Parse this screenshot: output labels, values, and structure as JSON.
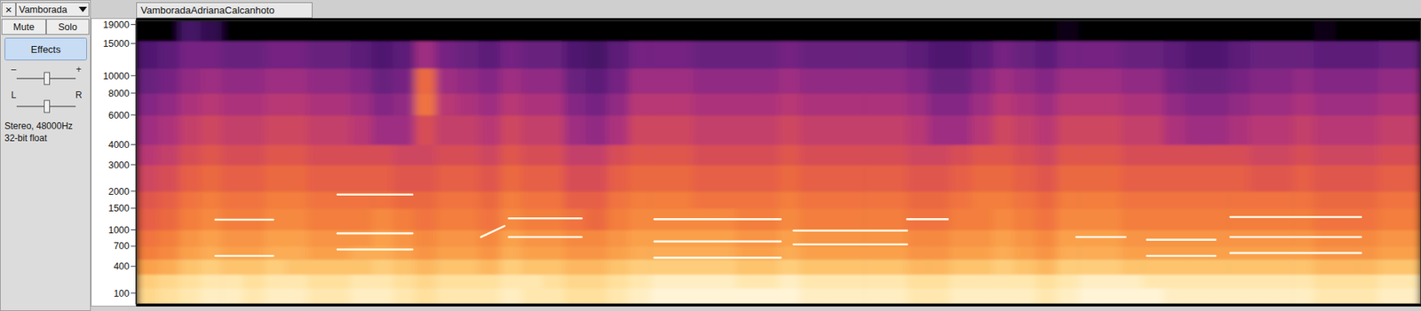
{
  "track": {
    "close": "×",
    "name": "Vamborada",
    "buttons": [
      "Mute",
      "Solo"
    ],
    "effects": "Effects",
    "gain": [
      "–",
      "+"
    ],
    "pan": [
      "L",
      "R"
    ],
    "info": [
      "Stereo, 48000Hz",
      "32-bit float"
    ]
  },
  "chart_data": {
    "type": "spectrogram",
    "title": "VamboradaAdrianaCalcanhoto",
    "xlim": [
      0,
      60
    ],
    "ylim": [
      0,
      20000
    ],
    "zlim": [
      -80,
      0
    ],
    "yticks": [
      100,
      400,
      700,
      1000,
      1500,
      2000,
      3000,
      4000,
      6000,
      8000,
      10000,
      15000,
      19000
    ],
    "tick_labels": "y",
    "bands": [
      0,
      150,
      300,
      500,
      700,
      1000,
      1500,
      2000,
      3000,
      4000,
      6000,
      8000,
      11000,
      15500,
      20000
    ],
    "cells": [
      [
        -12,
        -10,
        -8,
        -6,
        -6,
        -8,
        -6,
        -6,
        -8,
        -8,
        -6,
        -6,
        -8,
        -10,
        -8,
        -8,
        -8,
        -6,
        -8,
        -8,
        -10,
        -10,
        -8,
        -6,
        -4,
        -4,
        -4,
        -4,
        -4,
        -4,
        -4,
        -6,
        -6,
        -6,
        -6,
        -6,
        -8,
        -8,
        -6,
        -6,
        -6,
        -6,
        -8,
        -6,
        -4,
        -4,
        -4,
        -4,
        -6,
        -6,
        -6,
        -6,
        -6,
        -6,
        -6,
        -8,
        -8,
        -8,
        -6,
        -6
      ],
      [
        -14,
        -12,
        -10,
        -8,
        -8,
        -10,
        -8,
        -8,
        -10,
        -10,
        -8,
        -8,
        -10,
        -12,
        -10,
        -10,
        -10,
        -8,
        -8,
        -10,
        -12,
        -12,
        -10,
        -8,
        -6,
        -6,
        -6,
        -6,
        -8,
        -8,
        -6,
        -8,
        -8,
        -8,
        -8,
        -8,
        -10,
        -10,
        -8,
        -8,
        -8,
        -8,
        -10,
        -8,
        -6,
        -6,
        -6,
        -8,
        -8,
        -8,
        -8,
        -8,
        -8,
        -8,
        -8,
        -10,
        -10,
        -10,
        -8,
        -8
      ],
      [
        -22,
        -20,
        -16,
        -14,
        -16,
        -16,
        -14,
        -16,
        -16,
        -16,
        -16,
        -14,
        -16,
        -18,
        -16,
        -16,
        -18,
        -14,
        -16,
        -16,
        -18,
        -18,
        -16,
        -14,
        -14,
        -14,
        -14,
        -14,
        -16,
        -16,
        -14,
        -16,
        -16,
        -16,
        -16,
        -16,
        -18,
        -18,
        -16,
        -16,
        -14,
        -16,
        -18,
        -14,
        -14,
        -14,
        -16,
        -16,
        -16,
        -16,
        -16,
        -16,
        -16,
        -16,
        -16,
        -18,
        -18,
        -18,
        -16,
        -16
      ],
      [
        -28,
        -26,
        -22,
        -20,
        -22,
        -22,
        -20,
        -20,
        -22,
        -22,
        -20,
        -20,
        -22,
        -24,
        -22,
        -22,
        -24,
        -20,
        -22,
        -22,
        -24,
        -24,
        -22,
        -20,
        -20,
        -20,
        -20,
        -20,
        -22,
        -22,
        -20,
        -22,
        -22,
        -22,
        -22,
        -22,
        -24,
        -24,
        -22,
        -22,
        -20,
        -22,
        -24,
        -20,
        -20,
        -20,
        -22,
        -22,
        -22,
        -22,
        -22,
        -22,
        -22,
        -22,
        -22,
        -24,
        -24,
        -24,
        -22,
        -22
      ],
      [
        -30,
        -28,
        -24,
        -22,
        -24,
        -24,
        -22,
        -22,
        -24,
        -24,
        -24,
        -22,
        -24,
        -26,
        -24,
        -24,
        -26,
        -22,
        -24,
        -24,
        -26,
        -26,
        -24,
        -22,
        -22,
        -22,
        -22,
        -22,
        -24,
        -24,
        -22,
        -24,
        -24,
        -24,
        -24,
        -24,
        -26,
        -26,
        -24,
        -24,
        -22,
        -24,
        -26,
        -22,
        -22,
        -22,
        -24,
        -24,
        -24,
        -24,
        -24,
        -24,
        -24,
        -24,
        -24,
        -26,
        -26,
        -26,
        -24,
        -24
      ],
      [
        -34,
        -32,
        -28,
        -26,
        -28,
        -28,
        -26,
        -26,
        -28,
        -28,
        -28,
        -26,
        -28,
        -30,
        -28,
        -28,
        -30,
        -26,
        -28,
        -28,
        -30,
        -32,
        -28,
        -26,
        -26,
        -26,
        -26,
        -26,
        -28,
        -28,
        -26,
        -28,
        -28,
        -28,
        -28,
        -28,
        -30,
        -30,
        -28,
        -28,
        -26,
        -28,
        -30,
        -26,
        -26,
        -26,
        -28,
        -28,
        -28,
        -28,
        -28,
        -28,
        -28,
        -28,
        -28,
        -30,
        -30,
        -30,
        -28,
        -28
      ],
      [
        -36,
        -34,
        -30,
        -28,
        -30,
        -30,
        -28,
        -28,
        -30,
        -30,
        -30,
        -30,
        -32,
        -32,
        -30,
        -30,
        -32,
        -28,
        -30,
        -30,
        -34,
        -34,
        -30,
        -28,
        -28,
        -28,
        -30,
        -30,
        -30,
        -30,
        -28,
        -30,
        -30,
        -30,
        -30,
        -30,
        -32,
        -32,
        -30,
        -28,
        -28,
        -30,
        -32,
        -28,
        -28,
        -28,
        -30,
        -30,
        -30,
        -30,
        -30,
        -30,
        -30,
        -30,
        -30,
        -32,
        -32,
        -32,
        -30,
        -30
      ],
      [
        -40,
        -38,
        -34,
        -32,
        -34,
        -34,
        -32,
        -32,
        -34,
        -34,
        -34,
        -34,
        -36,
        -36,
        -34,
        -34,
        -36,
        -32,
        -34,
        -34,
        -38,
        -38,
        -34,
        -32,
        -32,
        -32,
        -34,
        -34,
        -34,
        -34,
        -32,
        -34,
        -34,
        -34,
        -34,
        -34,
        -36,
        -36,
        -34,
        -32,
        -32,
        -34,
        -36,
        -32,
        -32,
        -32,
        -34,
        -34,
        -34,
        -34,
        -34,
        -34,
        -36,
        -36,
        -34,
        -36,
        -36,
        -36,
        -34,
        -34
      ],
      [
        -44,
        -42,
        -38,
        -36,
        -38,
        -38,
        -36,
        -36,
        -38,
        -38,
        -38,
        -38,
        -40,
        -40,
        -38,
        -38,
        -40,
        -36,
        -38,
        -38,
        -42,
        -42,
        -38,
        -36,
        -36,
        -36,
        -38,
        -38,
        -38,
        -38,
        -36,
        -38,
        -38,
        -38,
        -38,
        -38,
        -40,
        -40,
        -38,
        -36,
        -36,
        -38,
        -40,
        -36,
        -36,
        -36,
        -38,
        -38,
        -38,
        -38,
        -38,
        -38,
        -40,
        -40,
        -38,
        -40,
        -40,
        -40,
        -38,
        -38
      ],
      [
        -48,
        -46,
        -42,
        -40,
        -42,
        -42,
        -40,
        -40,
        -42,
        -42,
        -44,
        -48,
        -48,
        -38,
        -42,
        -42,
        -44,
        -40,
        -42,
        -42,
        -48,
        -50,
        -46,
        -40,
        -40,
        -40,
        -42,
        -42,
        -42,
        -42,
        -40,
        -42,
        -42,
        -42,
        -42,
        -42,
        -44,
        -48,
        -48,
        -44,
        -40,
        -42,
        -44,
        -40,
        -40,
        -40,
        -42,
        -42,
        -46,
        -48,
        -48,
        -46,
        -44,
        -44,
        -42,
        -44,
        -44,
        -44,
        -42,
        -42
      ],
      [
        -52,
        -50,
        -46,
        -44,
        -46,
        -46,
        -44,
        -44,
        -46,
        -46,
        -48,
        -52,
        -50,
        -30,
        -44,
        -46,
        -48,
        -44,
        -46,
        -46,
        -52,
        -54,
        -50,
        -44,
        -44,
        -44,
        -46,
        -46,
        -46,
        -46,
        -44,
        -46,
        -46,
        -46,
        -46,
        -46,
        -48,
        -52,
        -52,
        -48,
        -44,
        -46,
        -48,
        -44,
        -44,
        -44,
        -46,
        -46,
        -50,
        -52,
        -52,
        -50,
        -48,
        -48,
        -46,
        -48,
        -48,
        -48,
        -46,
        -46
      ],
      [
        -56,
        -54,
        -50,
        -48,
        -50,
        -50,
        -48,
        -48,
        -50,
        -50,
        -52,
        -56,
        -54,
        -32,
        -48,
        -50,
        -52,
        -48,
        -50,
        -50,
        -56,
        -58,
        -54,
        -48,
        -48,
        -48,
        -50,
        -50,
        -50,
        -50,
        -48,
        -50,
        -50,
        -50,
        -50,
        -50,
        -52,
        -56,
        -56,
        -52,
        -48,
        -50,
        -52,
        -48,
        -48,
        -48,
        -50,
        -50,
        -54,
        -56,
        -56,
        -54,
        -52,
        -52,
        -50,
        -52,
        -52,
        -52,
        -50,
        -50
      ],
      [
        -60,
        -58,
        -54,
        -54,
        -56,
        -56,
        -54,
        -54,
        -56,
        -56,
        -58,
        -60,
        -58,
        -48,
        -54,
        -56,
        -58,
        -54,
        -56,
        -56,
        -60,
        -62,
        -58,
        -54,
        -54,
        -54,
        -56,
        -56,
        -56,
        -56,
        -54,
        -56,
        -56,
        -56,
        -56,
        -56,
        -58,
        -60,
        -60,
        -58,
        -54,
        -56,
        -58,
        -54,
        -54,
        -54,
        -56,
        -56,
        -58,
        -60,
        -60,
        -58,
        -56,
        -56,
        -56,
        -58,
        -58,
        -58,
        -56,
        -56
      ],
      [
        -80,
        -80,
        -62,
        -66,
        -80,
        -80,
        -80,
        -80,
        -80,
        -80,
        -80,
        -80,
        -80,
        -80,
        -80,
        -80,
        -80,
        -80,
        -80,
        -80,
        -80,
        -80,
        -80,
        -80,
        -80,
        -80,
        -80,
        -80,
        -80,
        -80,
        -80,
        -80,
        -80,
        -80,
        -80,
        -80,
        -80,
        -80,
        -80,
        -80,
        -80,
        -80,
        -80,
        -76,
        -80,
        -80,
        -80,
        -80,
        -80,
        -80,
        -80,
        -80,
        -80,
        -80,
        -80,
        -76,
        -80,
        -80,
        -80,
        -80
      ]
    ],
    "partials": [
      {
        "x": [
          3.7,
          6.4
        ],
        "y": [
          1220,
          1220
        ]
      },
      {
        "x": [
          3.7,
          6.4
        ],
        "y": [
          545,
          545
        ]
      },
      {
        "x": [
          9.4,
          12.9
        ],
        "y": [
          930,
          930
        ]
      },
      {
        "x": [
          9.4,
          12.9
        ],
        "y": [
          645,
          645
        ]
      },
      {
        "x": [
          9.4,
          12.9
        ],
        "y": [
          1890,
          1890
        ]
      },
      {
        "x": [
          16.1,
          17.2
        ],
        "y": [
          860,
          1080
        ]
      },
      {
        "x": [
          17.4,
          20.8
        ],
        "y": [
          1250,
          1250
        ]
      },
      {
        "x": [
          17.4,
          20.8
        ],
        "y": [
          860,
          860
        ]
      },
      {
        "x": [
          24.2,
          30.1
        ],
        "y": [
          1230,
          1230
        ]
      },
      {
        "x": [
          24.2,
          30.1
        ],
        "y": [
          780,
          780
        ]
      },
      {
        "x": [
          24.2,
          30.1
        ],
        "y": [
          520,
          520
        ]
      },
      {
        "x": [
          30.7,
          36.0
        ],
        "y": [
          985,
          985
        ]
      },
      {
        "x": [
          30.7,
          36.0
        ],
        "y": [
          730,
          730
        ]
      },
      {
        "x": [
          36.0,
          37.9
        ],
        "y": [
          1230,
          1230
        ]
      },
      {
        "x": [
          43.9,
          46.2
        ],
        "y": [
          860,
          860
        ]
      },
      {
        "x": [
          47.2,
          50.4
        ],
        "y": [
          810,
          810
        ]
      },
      {
        "x": [
          47.2,
          50.4
        ],
        "y": [
          545,
          545
        ]
      },
      {
        "x": [
          51.1,
          57.2
        ],
        "y": [
          860,
          860
        ]
      },
      {
        "x": [
          51.1,
          57.2
        ],
        "y": [
          590,
          590
        ]
      },
      {
        "x": [
          51.1,
          57.2
        ],
        "y": [
          1280,
          1280
        ]
      }
    ]
  }
}
